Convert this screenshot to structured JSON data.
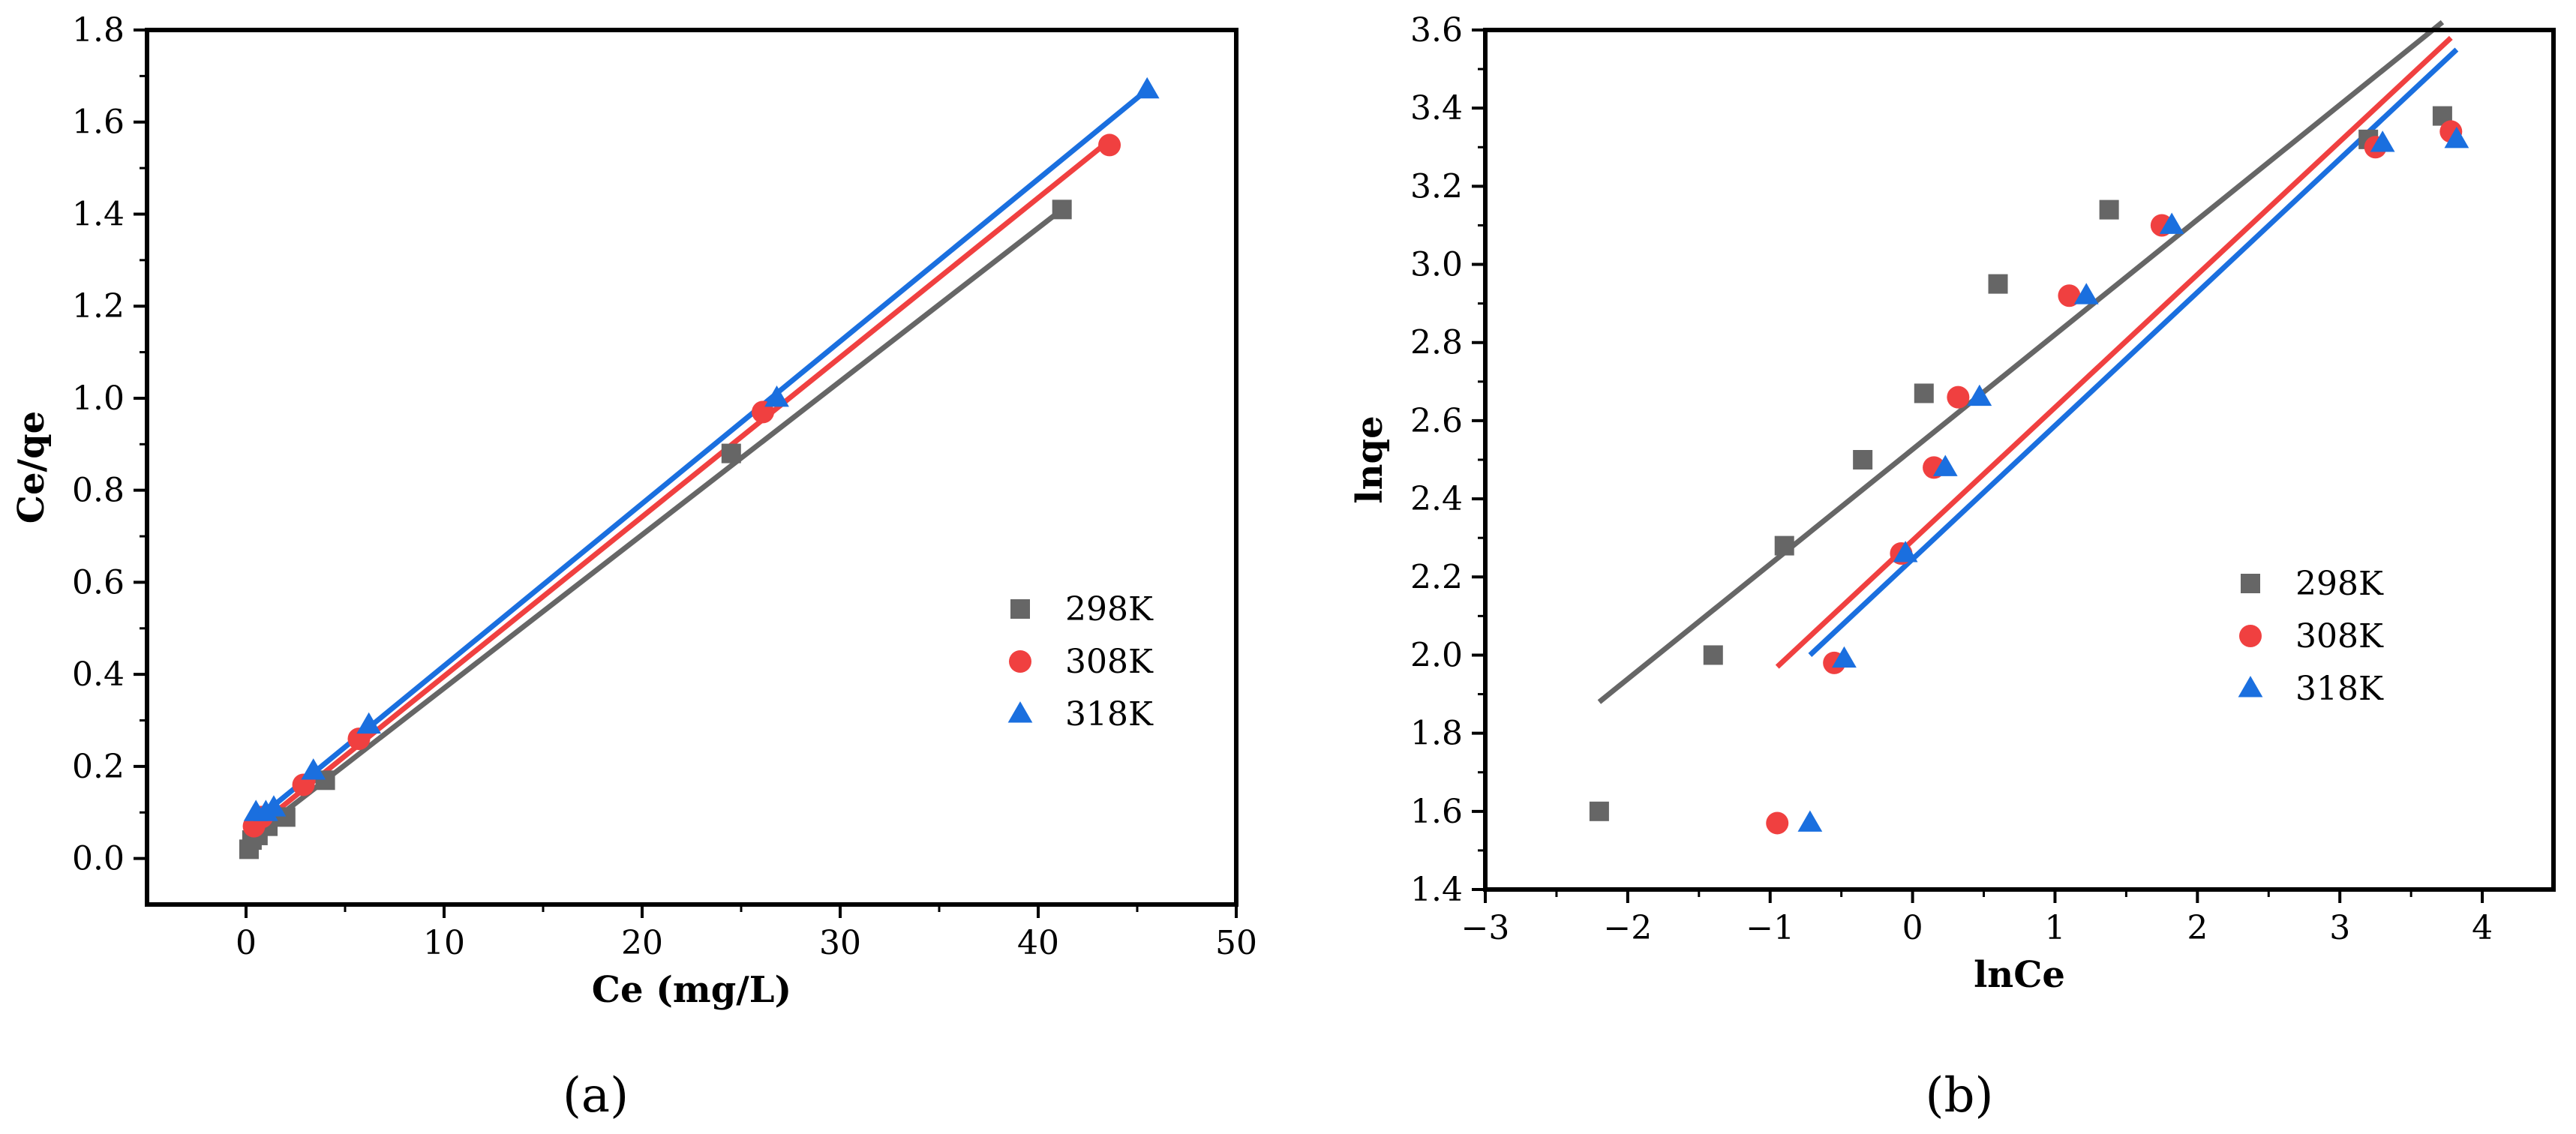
{
  "chart_data": [
    {
      "type": "scatter",
      "panel_label": "(a)",
      "xlabel": "Ce (mg/L)",
      "ylabel": "Ce/qe",
      "xlim": [
        -5,
        50
      ],
      "ylim": [
        -0.1,
        1.8
      ],
      "xticks": [
        0,
        10,
        20,
        30,
        40,
        50
      ],
      "xtick_labels": [
        "0",
        "10",
        "20",
        "30",
        "40",
        "50"
      ],
      "yticks": [
        0.0,
        0.2,
        0.4,
        0.6,
        0.8,
        1.0,
        1.2,
        1.4,
        1.6,
        1.8
      ],
      "ytick_labels": [
        "0.0",
        "0.2",
        "0.4",
        "0.6",
        "0.8",
        "1.0",
        "1.2",
        "1.4",
        "1.6",
        "1.8"
      ],
      "legend_position": "center-right",
      "series": [
        {
          "name": "298K",
          "color": "#666666",
          "marker": "square",
          "points": [
            [
              0.15,
              0.02
            ],
            [
              0.3,
              0.04
            ],
            [
              0.6,
              0.05
            ],
            [
              1.1,
              0.07
            ],
            [
              2.0,
              0.09
            ],
            [
              4.0,
              0.17
            ],
            [
              24.5,
              0.88
            ],
            [
              41.2,
              1.41
            ]
          ],
          "fit": [
            [
              0.1,
              0.04
            ],
            [
              41.2,
              1.41
            ]
          ]
        },
        {
          "name": "308K",
          "color": "#f04040",
          "marker": "circle",
          "points": [
            [
              0.4,
              0.07
            ],
            [
              0.8,
              0.09
            ],
            [
              2.9,
              0.16
            ],
            [
              5.7,
              0.26
            ],
            [
              26.1,
              0.97
            ],
            [
              43.6,
              1.55
            ]
          ],
          "fit": [
            [
              0.3,
              0.06
            ],
            [
              43.6,
              1.56
            ]
          ]
        },
        {
          "name": "318K",
          "color": "#1a6fdf",
          "marker": "triangle",
          "points": [
            [
              0.5,
              0.1
            ],
            [
              1.0,
              0.1
            ],
            [
              1.4,
              0.11
            ],
            [
              3.4,
              0.19
            ],
            [
              6.2,
              0.29
            ],
            [
              26.8,
              1.0
            ],
            [
              45.5,
              1.67
            ]
          ],
          "fit": [
            [
              0.4,
              0.08
            ],
            [
              45.5,
              1.67
            ]
          ]
        }
      ]
    },
    {
      "type": "scatter",
      "panel_label": "(b)",
      "xlabel": "lnCe",
      "ylabel": "lnqe",
      "xlim": [
        -3,
        4.5
      ],
      "ylim": [
        1.4,
        3.6
      ],
      "xticks": [
        -3,
        -2,
        -1,
        0,
        1,
        2,
        3,
        4
      ],
      "xtick_labels": [
        "−3",
        "−2",
        "−1",
        "0",
        "1",
        "2",
        "3",
        "4"
      ],
      "yticks": [
        1.4,
        1.6,
        1.8,
        2.0,
        2.2,
        2.4,
        2.6,
        2.8,
        3.0,
        3.2,
        3.4,
        3.6
      ],
      "ytick_labels": [
        "1.4",
        "1.6",
        "1.8",
        "2.0",
        "2.2",
        "2.4",
        "2.6",
        "2.8",
        "3.0",
        "3.2",
        "3.4",
        "3.6"
      ],
      "legend_position": "center-right",
      "series": [
        {
          "name": "298K",
          "color": "#666666",
          "marker": "square",
          "points": [
            [
              -2.2,
              1.6
            ],
            [
              -1.4,
              2.0
            ],
            [
              -0.9,
              2.28
            ],
            [
              -0.35,
              2.5
            ],
            [
              0.08,
              2.67
            ],
            [
              0.6,
              2.95
            ],
            [
              1.38,
              3.14
            ],
            [
              3.2,
              3.32
            ],
            [
              3.72,
              3.38
            ]
          ],
          "fit": [
            [
              -2.2,
              1.88
            ],
            [
              3.72,
              3.62
            ]
          ]
        },
        {
          "name": "308K",
          "color": "#f04040",
          "marker": "circle",
          "points": [
            [
              -0.95,
              1.57
            ],
            [
              -0.55,
              1.98
            ],
            [
              -0.08,
              2.26
            ],
            [
              0.15,
              2.48
            ],
            [
              0.32,
              2.66
            ],
            [
              1.1,
              2.92
            ],
            [
              1.75,
              3.1
            ],
            [
              3.25,
              3.3
            ],
            [
              3.78,
              3.34
            ]
          ],
          "fit": [
            [
              -0.95,
              1.97
            ],
            [
              3.78,
              3.58
            ]
          ]
        },
        {
          "name": "318K",
          "color": "#1a6fdf",
          "marker": "triangle",
          "points": [
            [
              -0.72,
              1.57
            ],
            [
              -0.48,
              1.99
            ],
            [
              -0.05,
              2.26
            ],
            [
              0.23,
              2.48
            ],
            [
              0.47,
              2.66
            ],
            [
              1.22,
              2.92
            ],
            [
              1.82,
              3.1
            ],
            [
              3.3,
              3.31
            ],
            [
              3.82,
              3.32
            ]
          ],
          "fit": [
            [
              -0.72,
              2.0
            ],
            [
              3.82,
              3.55
            ]
          ]
        }
      ]
    }
  ]
}
